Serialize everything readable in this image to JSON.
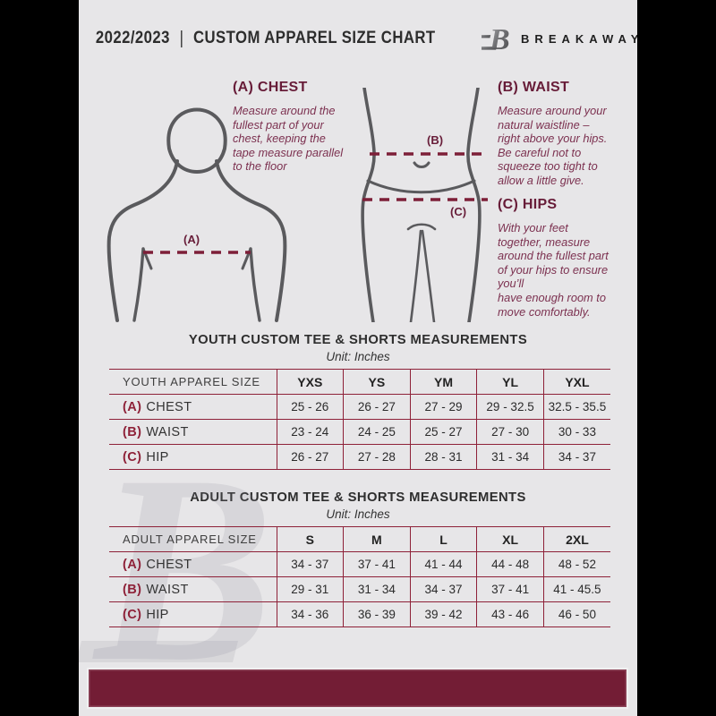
{
  "header": {
    "year": "2022/2023",
    "separator": "|",
    "title": "CUSTOM APPAREL SIZE CHART",
    "brand": "BREAKAWAY"
  },
  "instructions": [
    {
      "heading": "(A) CHEST",
      "body": "Measure around the\nfullest part of your\nchest, keeping the\ntape measure parallel\nto the floor"
    },
    {
      "heading": "(B) WAIST",
      "body": "Measure around your\nnatural waistline –\nright above your hips.\nBe careful not to\nsqueeze too tight to\nallow a little give."
    },
    {
      "heading": "(C) HIPS",
      "body": "With your feet\ntogether, measure\naround the fullest part\nof your hips to ensure\nyou’ll\nhave enough room to\nmove comfortably."
    }
  ],
  "diagram_labels": {
    "chest": "(A)",
    "waist": "(B)",
    "hips": "(C)"
  },
  "watermark_letter": "B",
  "youth_section": {
    "title": "YOUTH CUSTOM TEE & SHORTS MEASUREMENTS",
    "unit": "Unit: Inches",
    "table": {
      "label_header": "YOUTH APPAREL SIZE",
      "size_headers": [
        "YXS",
        "YS",
        "YM",
        "YL",
        "YXL"
      ],
      "rows": [
        {
          "prefix": "(A)",
          "label": "CHEST",
          "values": [
            "25 - 26",
            "26 - 27",
            "27 - 29",
            "29 - 32.5",
            "32.5 - 35.5"
          ]
        },
        {
          "prefix": "(B)",
          "label": "WAIST",
          "values": [
            "23 - 24",
            "24 - 25",
            "25 - 27",
            "27 - 30",
            "30 - 33"
          ]
        },
        {
          "prefix": "(C)",
          "label": "HIP",
          "values": [
            "26 - 27",
            "27 - 28",
            "28 - 31",
            "31 - 34",
            "34 - 37"
          ]
        }
      ]
    }
  },
  "adult_section": {
    "title": "ADULT CUSTOM TEE & SHORTS MEASUREMENTS",
    "unit": "Unit: Inches",
    "table": {
      "label_header": "ADULT APPAREL SIZE",
      "size_headers": [
        "S",
        "M",
        "L",
        "XL",
        "2XL"
      ],
      "rows": [
        {
          "prefix": "(A)",
          "label": "CHEST",
          "values": [
            "34 - 37",
            "37 - 41",
            "41 - 44",
            "44 - 48",
            "48 - 52"
          ]
        },
        {
          "prefix": "(B)",
          "label": "WAIST",
          "values": [
            "29 - 31",
            "31 - 34",
            "34 - 37",
            "37 - 41",
            "41 - 45.5"
          ]
        },
        {
          "prefix": "(C)",
          "label": "HIP",
          "values": [
            "34 - 36",
            "36 - 39",
            "39 - 42",
            "43 - 46",
            "46 - 50"
          ]
        }
      ]
    }
  },
  "colors": {
    "maroon_bar": "#731d35",
    "table_border": "#8e2138",
    "heading_maroon": "#671c38",
    "body_maroon": "#7c3150",
    "figure_gray": "#5a5a5d",
    "page_bg": "#e7e6e8",
    "text_dark": "#2d2d2d"
  }
}
